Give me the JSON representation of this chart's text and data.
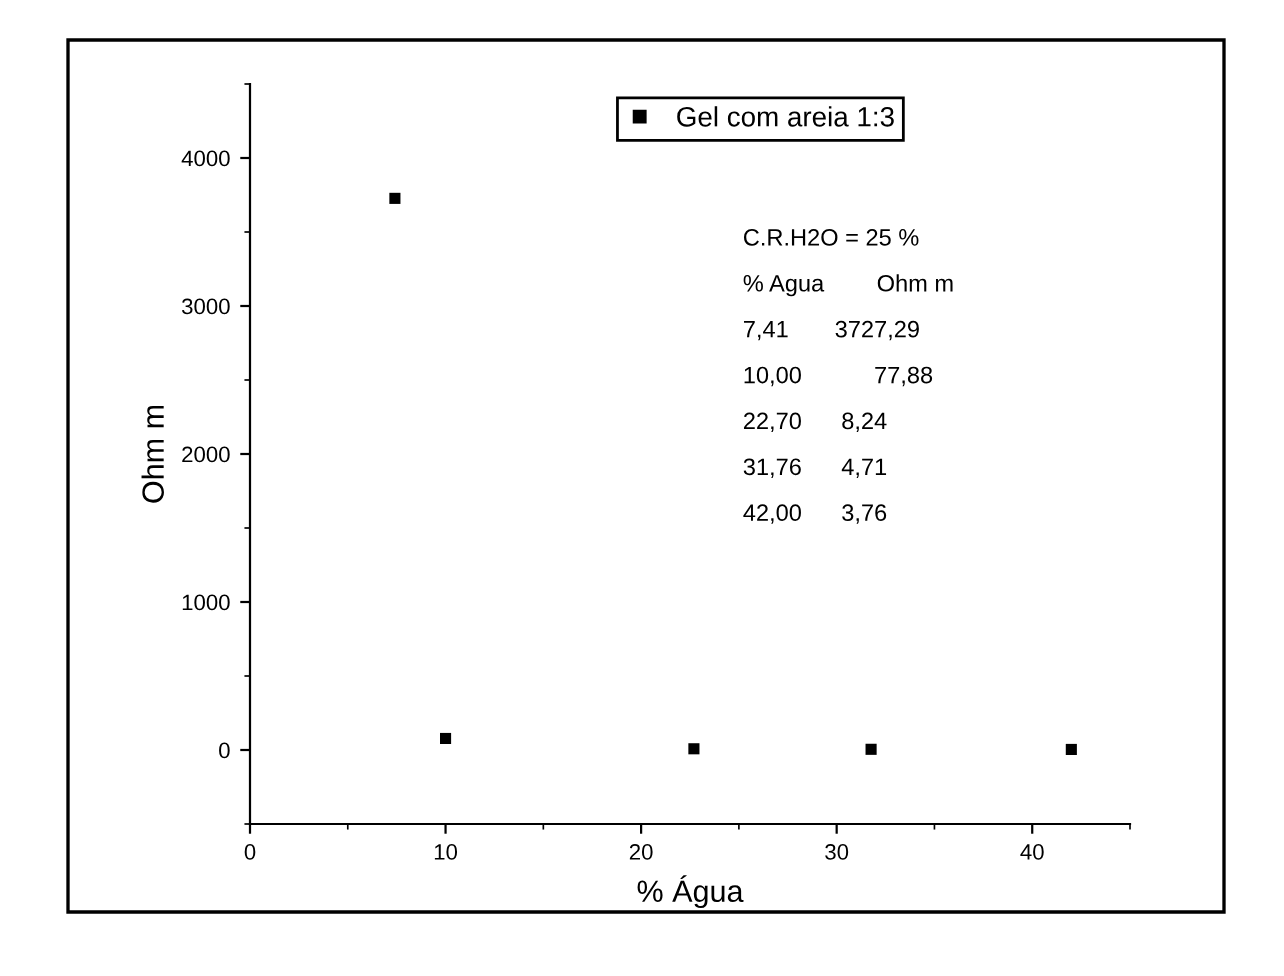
{
  "chart_data": {
    "type": "scatter",
    "xlabel": "% Água",
    "ylabel": "Ohm m",
    "x": [
      7.41,
      10.0,
      22.7,
      31.76,
      42.0
    ],
    "series": [
      {
        "name": "Gel com areia 1:3",
        "color": "#000000",
        "values": [
          3727.29,
          77.88,
          8.24,
          4.71,
          3.76
        ]
      }
    ],
    "xlim": [
      0,
      45
    ],
    "xticks": [
      0,
      10,
      20,
      30,
      40
    ],
    "ylim": [
      -500,
      4500
    ],
    "yticks": [
      0,
      1000,
      2000,
      3000,
      4000
    ],
    "marker": "square",
    "legend": "top",
    "grid": false,
    "annotations": [
      "C.R.H2O = 25 %",
      "% Agua        Ohm m",
      "7,41       3727,29",
      "10,00           77,88",
      "22,70      8,24",
      "31,76      4,71",
      "42,00      3,76"
    ]
  }
}
